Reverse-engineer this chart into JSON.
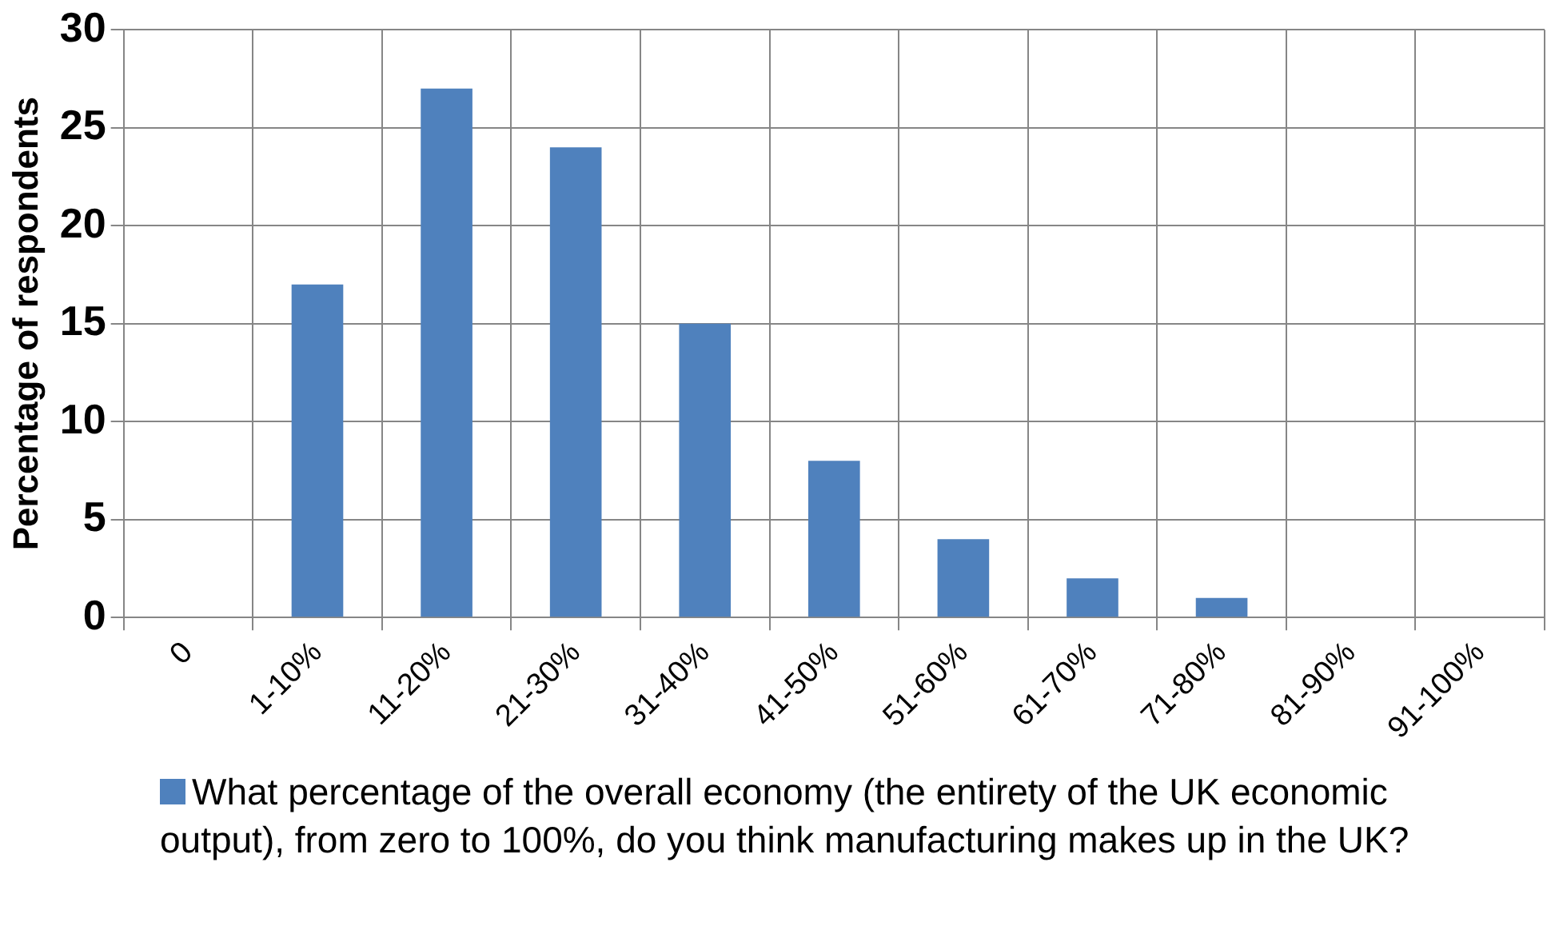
{
  "chart_data": {
    "type": "bar",
    "ylabel": "Percentage of respondents",
    "categories": [
      "0",
      "1-10%",
      "11-20%",
      "21-30%",
      "31-40%",
      "41-50%",
      "51-60%",
      "61-70%",
      "71-80%",
      "81-90%",
      "91-100%"
    ],
    "series": [
      {
        "name": "What percentage of the overall economy (the entirety of the UK economic output), from zero to 100%, do you think manufacturing makes up in the UK?",
        "color": "#4f81bd",
        "values": [
          0,
          17,
          27,
          24,
          15,
          8,
          4,
          2,
          1,
          0,
          0
        ]
      }
    ],
    "ylim": [
      0,
      30
    ],
    "yticks": [
      0,
      5,
      10,
      15,
      20,
      25,
      30
    ],
    "grid": true,
    "legend": "bottom"
  }
}
